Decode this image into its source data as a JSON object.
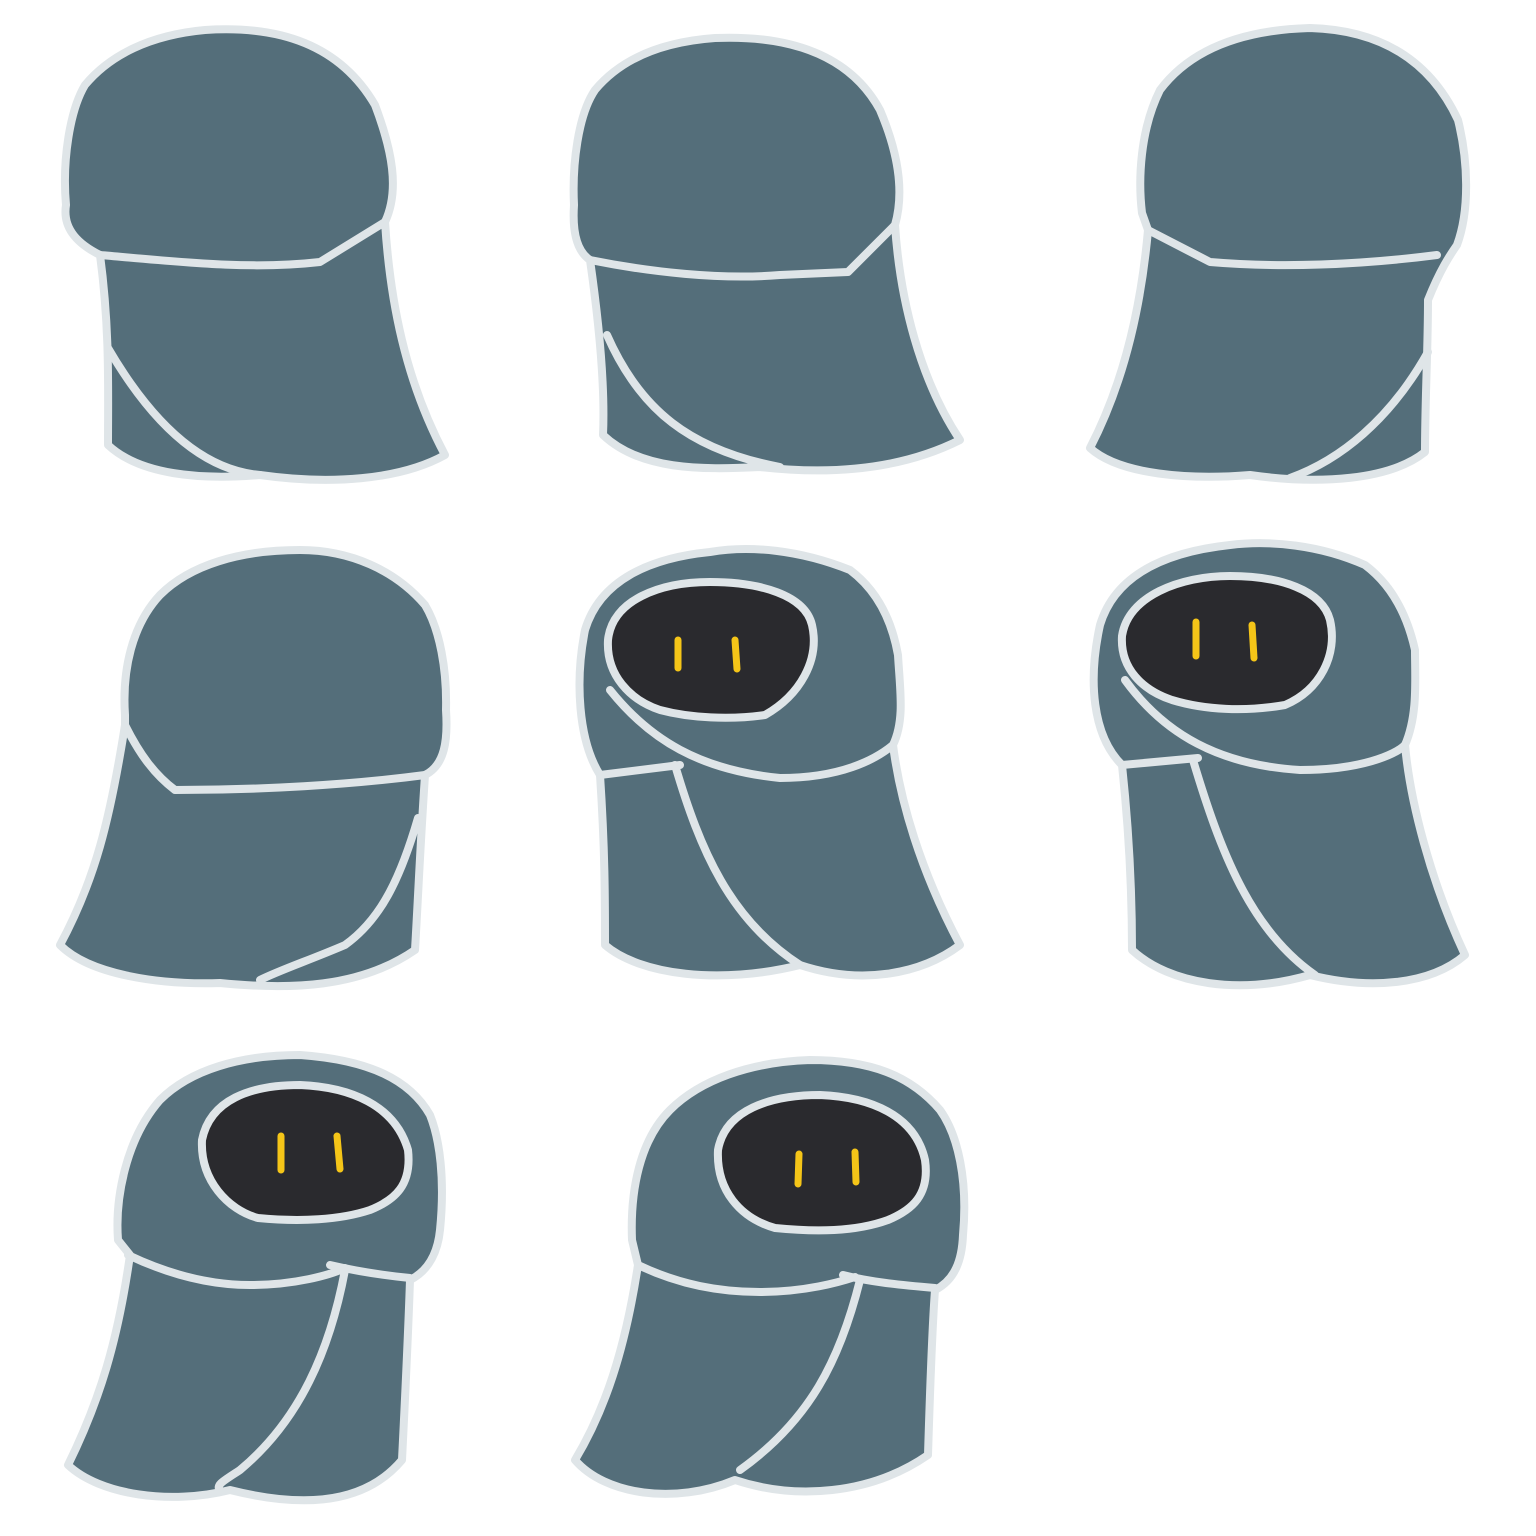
{
  "colors": {
    "background": "#ffffff",
    "cloak": "#546e7a",
    "outline": "#dfe5e8",
    "face": "#2a2a2e",
    "eyes": "#f5c518"
  },
  "sprites": [
    {
      "name": "back",
      "face_visible": false
    },
    {
      "name": "back-three-quarter-left",
      "face_visible": false
    },
    {
      "name": "back-three-quarter-right",
      "face_visible": false
    },
    {
      "name": "side",
      "face_visible": false
    },
    {
      "name": "front-three-quarter-a",
      "face_visible": true
    },
    {
      "name": "front-three-quarter-b",
      "face_visible": true
    },
    {
      "name": "front-a",
      "face_visible": true
    },
    {
      "name": "front-b",
      "face_visible": true
    }
  ]
}
